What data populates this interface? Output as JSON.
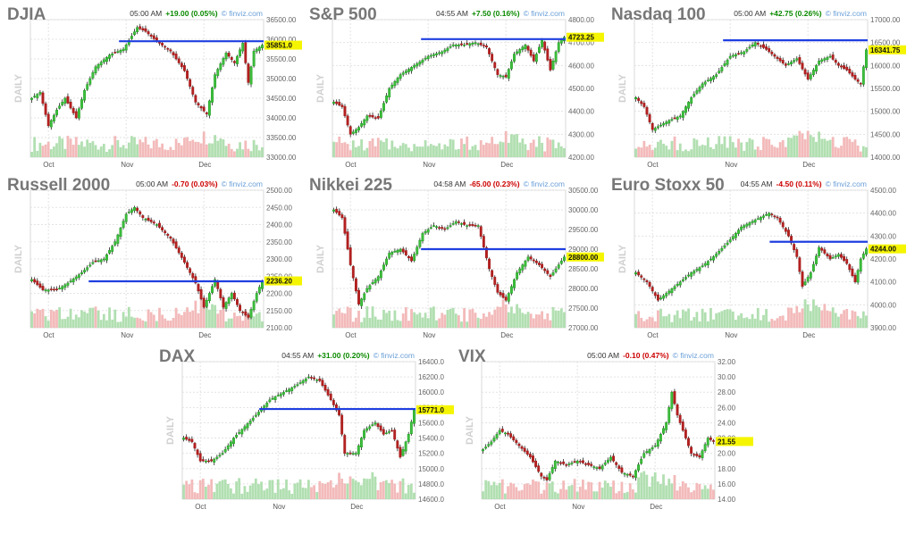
{
  "footer": "",
  "chart_data": [
    {
      "type": "candlestick",
      "title": "DJIA",
      "time": "05:00 AM",
      "change": "+19.00 (0.05%)",
      "dir": "up",
      "source": "finviz.com",
      "side_label": "DAILY",
      "xlabels": [
        "Oct",
        "Nov",
        "Dec"
      ],
      "ylim": [
        33000,
        36500
      ],
      "yticks": [
        33000,
        33500,
        34000,
        34500,
        35000,
        35500,
        36000,
        36500
      ],
      "decimals": 2,
      "last": 35851.0,
      "last_label": "35851.0",
      "hline": 35950,
      "hline_from": 0.38,
      "anchors": [
        [
          0,
          34500
        ],
        [
          3,
          34650
        ],
        [
          6,
          33800
        ],
        [
          9,
          34200
        ],
        [
          12,
          34500
        ],
        [
          16,
          34000
        ],
        [
          19,
          34700
        ],
        [
          23,
          35300
        ],
        [
          28,
          35600
        ],
        [
          33,
          35750
        ],
        [
          38,
          36300
        ],
        [
          41,
          36200
        ],
        [
          45,
          35950
        ],
        [
          50,
          35700
        ],
        [
          55,
          35200
        ],
        [
          59,
          34400
        ],
        [
          63,
          34100
        ],
        [
          66,
          35100
        ],
        [
          70,
          35650
        ],
        [
          73,
          35400
        ],
        [
          76,
          35900
        ],
        [
          78,
          34900
        ],
        [
          80,
          35700
        ],
        [
          83,
          35851
        ]
      ]
    },
    {
      "type": "candlestick",
      "title": "S&P 500",
      "time": "04:55 AM",
      "change": "+7.50 (0.16%)",
      "dir": "up",
      "source": "finviz.com",
      "side_label": "DAILY",
      "xlabels": [
        "Oct",
        "Nov",
        "Dec"
      ],
      "ylim": [
        4200,
        4800
      ],
      "yticks": [
        4200,
        4300,
        4400,
        4500,
        4600,
        4700,
        4800
      ],
      "decimals": 2,
      "last": 4723.25,
      "last_label": "4723.25",
      "hline": 4715,
      "hline_from": 0.38,
      "anchors": [
        [
          0,
          4440
        ],
        [
          3,
          4420
        ],
        [
          6,
          4300
        ],
        [
          9,
          4330
        ],
        [
          12,
          4380
        ],
        [
          16,
          4370
        ],
        [
          20,
          4500
        ],
        [
          24,
          4560
        ],
        [
          29,
          4600
        ],
        [
          34,
          4640
        ],
        [
          39,
          4660
        ],
        [
          43,
          4690
        ],
        [
          47,
          4690
        ],
        [
          51,
          4700
        ],
        [
          55,
          4680
        ],
        [
          59,
          4560
        ],
        [
          62,
          4550
        ],
        [
          65,
          4650
        ],
        [
          69,
          4690
        ],
        [
          72,
          4620
        ],
        [
          75,
          4710
        ],
        [
          78,
          4580
        ],
        [
          81,
          4700
        ],
        [
          83,
          4723
        ]
      ]
    },
    {
      "type": "candlestick",
      "title": "Nasdaq 100",
      "time": "05:00 AM",
      "change": "+42.75 (0.26%)",
      "dir": "up",
      "source": "finviz.com",
      "side_label": "DAILY",
      "xlabels": [
        "Oct",
        "Nov",
        "Dec"
      ],
      "ylim": [
        14000,
        17000
      ],
      "yticks": [
        14000,
        14500,
        15000,
        15500,
        16000,
        16500,
        17000
      ],
      "decimals": 2,
      "last": 16341.75,
      "last_label": "16341.75",
      "hline": 16550,
      "hline_from": 0.38,
      "anchors": [
        [
          0,
          15300
        ],
        [
          3,
          15100
        ],
        [
          6,
          14600
        ],
        [
          9,
          14700
        ],
        [
          12,
          14800
        ],
        [
          16,
          14900
        ],
        [
          20,
          15300
        ],
        [
          24,
          15600
        ],
        [
          29,
          15800
        ],
        [
          34,
          16200
        ],
        [
          39,
          16300
        ],
        [
          43,
          16500
        ],
        [
          47,
          16350
        ],
        [
          50,
          16200
        ],
        [
          54,
          16000
        ],
        [
          58,
          16150
        ],
        [
          62,
          15700
        ],
        [
          66,
          16100
        ],
        [
          70,
          16200
        ],
        [
          73,
          16000
        ],
        [
          76,
          15900
        ],
        [
          79,
          15700
        ],
        [
          81,
          15600
        ],
        [
          83,
          16341
        ]
      ]
    },
    {
      "type": "candlestick",
      "title": "Russell 2000",
      "time": "05:00 AM",
      "change": "-0.70 (0.03%)",
      "dir": "dn",
      "source": "finviz.com",
      "side_label": "DAILY",
      "xlabels": [
        "Oct",
        "Nov",
        "Dec"
      ],
      "ylim": [
        2100,
        2500
      ],
      "yticks": [
        2100,
        2150,
        2200,
        2250,
        2300,
        2350,
        2400,
        2450,
        2500
      ],
      "decimals": 2,
      "last": 2236.2,
      "last_label": "2236.20",
      "hline": 2235,
      "hline_from": 0.25,
      "anchors": [
        [
          0,
          2240
        ],
        [
          4,
          2210
        ],
        [
          9,
          2210
        ],
        [
          13,
          2230
        ],
        [
          18,
          2260
        ],
        [
          22,
          2290
        ],
        [
          26,
          2300
        ],
        [
          30,
          2350
        ],
        [
          34,
          2430
        ],
        [
          37,
          2450
        ],
        [
          40,
          2420
        ],
        [
          45,
          2400
        ],
        [
          50,
          2360
        ],
        [
          55,
          2290
        ],
        [
          59,
          2230
        ],
        [
          62,
          2160
        ],
        [
          66,
          2240
        ],
        [
          69,
          2160
        ],
        [
          72,
          2200
        ],
        [
          75,
          2150
        ],
        [
          78,
          2130
        ],
        [
          81,
          2200
        ],
        [
          83,
          2236
        ]
      ]
    },
    {
      "type": "candlestick",
      "title": "Nikkei 225",
      "time": "04:58 AM",
      "change": "-65.00 (0.23%)",
      "dir": "dn",
      "source": "finviz.com",
      "side_label": "DAILY",
      "xlabels": [
        "Oct",
        "Nov",
        "Dec"
      ],
      "ylim": [
        27000,
        30500
      ],
      "yticks": [
        27000,
        27500,
        28000,
        28500,
        29000,
        29500,
        30000,
        30500
      ],
      "decimals": 2,
      "last": 28800.0,
      "last_label": "28800.00",
      "hline": 29000,
      "hline_from": 0.38,
      "anchors": [
        [
          0,
          30000
        ],
        [
          3,
          29800
        ],
        [
          6,
          28600
        ],
        [
          9,
          27600
        ],
        [
          12,
          28000
        ],
        [
          16,
          28300
        ],
        [
          20,
          28900
        ],
        [
          24,
          29000
        ],
        [
          28,
          28700
        ],
        [
          32,
          29400
        ],
        [
          36,
          29600
        ],
        [
          40,
          29500
        ],
        [
          44,
          29700
        ],
        [
          48,
          29600
        ],
        [
          52,
          29600
        ],
        [
          56,
          28500
        ],
        [
          59,
          27900
        ],
        [
          62,
          27700
        ],
        [
          66,
          28400
        ],
        [
          70,
          28800
        ],
        [
          74,
          28600
        ],
        [
          78,
          28300
        ],
        [
          81,
          28600
        ],
        [
          83,
          28800
        ]
      ]
    },
    {
      "type": "candlestick",
      "title": "Euro Stoxx 50",
      "time": "04:55 AM",
      "change": "-4.50 (0.11%)",
      "dir": "dn",
      "source": "finviz.com",
      "side_label": "DAILY",
      "xlabels": [
        "Oct",
        "Nov",
        "Dec"
      ],
      "ylim": [
        3900,
        4500
      ],
      "yticks": [
        3900,
        4000,
        4100,
        4200,
        4300,
        4400,
        4500
      ],
      "decimals": 2,
      "last": 4244.0,
      "last_label": "4244.00",
      "hline": 4275,
      "hline_from": 0.58,
      "anchors": [
        [
          0,
          4140
        ],
        [
          4,
          4100
        ],
        [
          8,
          4020
        ],
        [
          12,
          4060
        ],
        [
          16,
          4100
        ],
        [
          20,
          4140
        ],
        [
          24,
          4170
        ],
        [
          28,
          4210
        ],
        [
          33,
          4270
        ],
        [
          38,
          4340
        ],
        [
          43,
          4370
        ],
        [
          48,
          4400
        ],
        [
          51,
          4380
        ],
        [
          55,
          4300
        ],
        [
          58,
          4210
        ],
        [
          60,
          4080
        ],
        [
          63,
          4140
        ],
        [
          66,
          4250
        ],
        [
          70,
          4200
        ],
        [
          73,
          4220
        ],
        [
          76,
          4180
        ],
        [
          79,
          4100
        ],
        [
          81,
          4200
        ],
        [
          83,
          4244
        ]
      ]
    },
    {
      "type": "candlestick",
      "title": "DAX",
      "time": "04:55 AM",
      "change": "+31.00 (0.20%)",
      "dir": "up",
      "source": "finviz.com",
      "side_label": "DAILY",
      "xlabels": [
        "Oct",
        "Nov",
        "Dec"
      ],
      "ylim": [
        14600,
        16400
      ],
      "yticks": [
        14600,
        14800,
        15000,
        15200,
        15400,
        15600,
        15800,
        16000,
        16200,
        16400
      ],
      "decimals": 1,
      "last": 15771.0,
      "last_label": "15771.0",
      "hline": 15780,
      "hline_from": 0.33,
      "anchors": [
        [
          0,
          15400
        ],
        [
          3,
          15350
        ],
        [
          6,
          15100
        ],
        [
          10,
          15100
        ],
        [
          14,
          15200
        ],
        [
          18,
          15400
        ],
        [
          22,
          15550
        ],
        [
          26,
          15700
        ],
        [
          31,
          15900
        ],
        [
          36,
          16000
        ],
        [
          41,
          16100
        ],
        [
          45,
          16200
        ],
        [
          49,
          16150
        ],
        [
          53,
          15900
        ],
        [
          56,
          15700
        ],
        [
          58,
          15200
        ],
        [
          62,
          15200
        ],
        [
          65,
          15500
        ],
        [
          69,
          15600
        ],
        [
          72,
          15450
        ],
        [
          75,
          15500
        ],
        [
          78,
          15150
        ],
        [
          81,
          15450
        ],
        [
          83,
          15771
        ]
      ]
    },
    {
      "type": "candlestick",
      "title": "VIX",
      "time": "05:00 AM",
      "change": "-0.10 (0.47%)",
      "dir": "dn",
      "source": "finviz.com",
      "side_label": "DAILY",
      "xlabels": [
        "Oct",
        "Nov",
        "Dec"
      ],
      "ylim": [
        14,
        32
      ],
      "yticks": [
        14,
        16,
        18,
        20,
        22,
        24,
        26,
        28,
        30,
        32
      ],
      "decimals": 2,
      "last": 21.55,
      "last_label": "21.55",
      "hline": null,
      "hline_from": 0,
      "anchors": [
        [
          0,
          20.5
        ],
        [
          3,
          21.5
        ],
        [
          6,
          23
        ],
        [
          9,
          22.5
        ],
        [
          13,
          21
        ],
        [
          17,
          19.5
        ],
        [
          21,
          17
        ],
        [
          23,
          16.5
        ],
        [
          26,
          19
        ],
        [
          30,
          18.5
        ],
        [
          34,
          19
        ],
        [
          38,
          18.5
        ],
        [
          42,
          18
        ],
        [
          46,
          19.5
        ],
        [
          50,
          17.5
        ],
        [
          54,
          17
        ],
        [
          58,
          20
        ],
        [
          62,
          21
        ],
        [
          66,
          24
        ],
        [
          68,
          28
        ],
        [
          70,
          25
        ],
        [
          73,
          22
        ],
        [
          75,
          20
        ],
        [
          78,
          19.5
        ],
        [
          81,
          22
        ],
        [
          83,
          21.55
        ]
      ]
    }
  ]
}
